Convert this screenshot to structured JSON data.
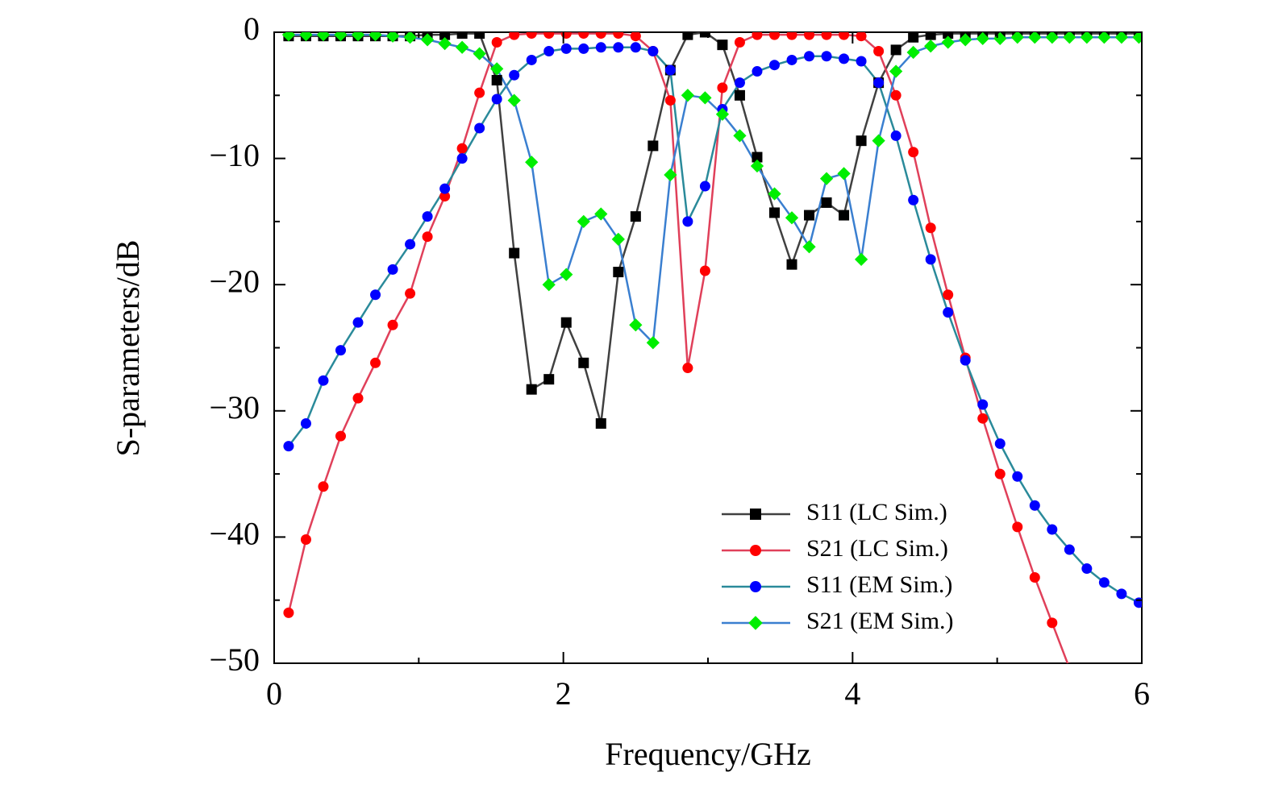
{
  "chart_data": {
    "type": "line",
    "xlabel": "Frequency/GHz",
    "ylabel": "S-parameters/dB",
    "x": [
      0.1,
      0.22,
      0.34,
      0.46,
      0.58,
      0.7,
      0.82,
      0.94,
      1.06,
      1.18,
      1.3,
      1.42,
      1.54,
      1.66,
      1.78,
      1.9,
      2.02,
      2.14,
      2.26,
      2.38,
      2.5,
      2.62,
      2.74,
      2.86,
      2.98,
      3.1,
      3.22,
      3.34,
      3.46,
      3.58,
      3.7,
      3.82,
      3.94,
      4.06,
      4.18,
      4.3,
      4.42,
      4.54,
      4.66,
      4.78,
      4.9,
      5.02,
      5.14,
      5.26,
      5.38,
      5.5,
      5.62,
      5.74,
      5.86,
      5.98
    ],
    "xlim": [
      0,
      6
    ],
    "xticks": [
      0,
      2,
      4,
      6
    ],
    "xminor": [
      1,
      3,
      5
    ],
    "ylim": [
      -50,
      0
    ],
    "yticks": [
      {
        "value": -50,
        "label": "−50"
      },
      {
        "value": -40,
        "label": "−40"
      },
      {
        "value": -30,
        "label": "−30"
      },
      {
        "value": -20,
        "label": "−20"
      },
      {
        "value": -10,
        "label": "−10"
      },
      0
    ],
    "yminor": [
      -45,
      -35,
      -25,
      -15,
      -5
    ],
    "legend": "lower right",
    "series": [
      {
        "name": "S11 (LC Sim.)",
        "color": "#000000",
        "line_color": "#404040",
        "marker": "square",
        "values": [
          -0.3,
          -0.3,
          -0.3,
          -0.3,
          -0.3,
          -0.3,
          -0.3,
          -0.3,
          -0.2,
          -0.2,
          -0.1,
          -0.1,
          -3.8,
          -17.5,
          -28.3,
          -27.5,
          -23,
          -26.2,
          -31,
          -19,
          -14.6,
          -9,
          -3,
          -0.2,
          0,
          -1,
          -5,
          -9.9,
          -14.3,
          -18.4,
          -14.5,
          -13.5,
          -14.5,
          -8.6,
          -4,
          -1.4,
          -0.4,
          -0.2,
          -0.1,
          -0.1,
          -0.1,
          -0.1,
          -0.1,
          -0.1,
          -0.1,
          -0.1,
          -0.1,
          -0.1,
          -0.1,
          -0.1
        ]
      },
      {
        "name": "S21 (LC Sim.)",
        "color": "#ff0000",
        "line_color": "#e0405a",
        "marker": "circle",
        "values": [
          -46,
          -40.2,
          -36,
          -32,
          -29,
          -26.2,
          -23.2,
          -20.7,
          -16.2,
          -13,
          -9.2,
          -4.8,
          -0.8,
          -0.2,
          -0.1,
          -0.1,
          -0.1,
          -0.1,
          -0.1,
          -0.1,
          -0.3,
          -1.5,
          -5.4,
          -26.6,
          -18.9,
          -4.4,
          -0.8,
          -0.2,
          -0.2,
          -0.2,
          -0.2,
          -0.2,
          -0.2,
          -0.3,
          -1.5,
          -5,
          -9.5,
          -15.5,
          -20.8,
          -25.8,
          -30.6,
          -35,
          -39.2,
          -43.2,
          -46.8,
          -50.4,
          null,
          null,
          null,
          null
        ]
      },
      {
        "name": "S11 (EM Sim.)",
        "color": "#0000ff",
        "line_color": "#2a8a9a",
        "marker": "circle",
        "values": [
          -32.8,
          -31,
          -27.6,
          -25.2,
          -23,
          -20.8,
          -18.8,
          -16.8,
          -14.6,
          -12.4,
          -10,
          -7.6,
          -5.3,
          -3.4,
          -2.2,
          -1.5,
          -1.3,
          -1.3,
          -1.2,
          -1.2,
          -1.2,
          -1.5,
          -3,
          -15,
          -12.2,
          -6.1,
          -4,
          -3.1,
          -2.6,
          -2.2,
          -1.9,
          -1.9,
          -2.1,
          -2.3,
          -4,
          -8.2,
          -13.3,
          -18,
          -22.2,
          -26,
          -29.5,
          -32.6,
          -35.2,
          -37.5,
          -39.4,
          -41,
          -42.5,
          -43.6,
          -44.5,
          -45.2
        ]
      },
      {
        "name": "S21 (EM Sim.)",
        "color": "#00ee00",
        "line_color": "#3a7fd0",
        "marker": "diamond",
        "values": [
          -0.2,
          -0.2,
          -0.2,
          -0.2,
          -0.2,
          -0.2,
          -0.3,
          -0.4,
          -0.6,
          -0.9,
          -1.2,
          -1.7,
          -2.9,
          -5.4,
          -10.3,
          -20,
          -19.2,
          -15,
          -14.4,
          -16.4,
          -23.2,
          -24.6,
          -11.3,
          -5,
          -5.2,
          -6.5,
          -8.2,
          -10.6,
          -12.8,
          -14.7,
          -17,
          -11.6,
          -11.2,
          -18,
          -8.6,
          -3.1,
          -1.6,
          -1.1,
          -0.8,
          -0.6,
          -0.5,
          -0.5,
          -0.4,
          -0.4,
          -0.4,
          -0.4,
          -0.4,
          -0.4,
          -0.4,
          -0.4
        ]
      }
    ]
  }
}
